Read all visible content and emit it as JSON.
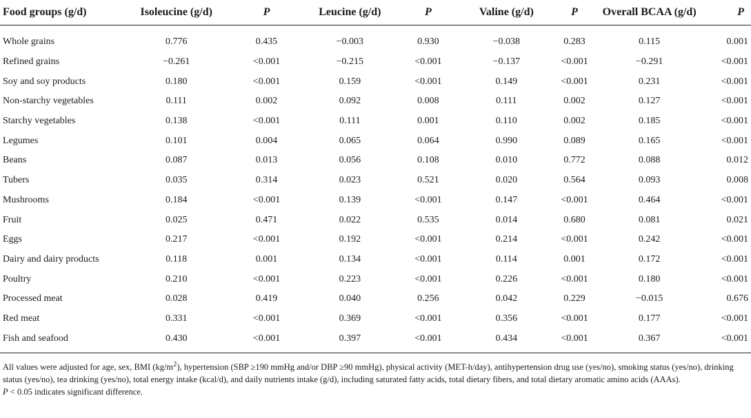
{
  "header": {
    "food": "Food groups (g/d)",
    "iso": "Isoleucine (g/d)",
    "p1": "P",
    "leu": "Leucine (g/d)",
    "p2": "P",
    "val": "Valine (g/d)",
    "p3": "P",
    "bcaa": "Overall BCAA (g/d)",
    "p4": "P"
  },
  "rows": [
    {
      "food": "Whole grains",
      "iso": "0.776",
      "p1": "0.435",
      "leu": "−0.003",
      "p2": "0.930",
      "val": "−0.038",
      "p3": "0.283",
      "bcaa": "0.115",
      "p4": "0.001"
    },
    {
      "food": "Refined grains",
      "iso": "−0.261",
      "p1": "<0.001",
      "leu": "−0.215",
      "p2": "<0.001",
      "val": "−0.137",
      "p3": "<0.001",
      "bcaa": "−0.291",
      "p4": "<0.001"
    },
    {
      "food": "Soy and soy products",
      "iso": "0.180",
      "p1": "<0.001",
      "leu": "0.159",
      "p2": "<0.001",
      "val": "0.149",
      "p3": "<0.001",
      "bcaa": "0.231",
      "p4": "<0.001"
    },
    {
      "food": "Non-starchy vegetables",
      "iso": "0.111",
      "p1": "0.002",
      "leu": "0.092",
      "p2": "0.008",
      "val": "0.111",
      "p3": "0.002",
      "bcaa": "0.127",
      "p4": "<0.001"
    },
    {
      "food": "Starchy vegetables",
      "iso": "0.138",
      "p1": "<0.001",
      "leu": "0.111",
      "p2": "0.001",
      "val": "0.110",
      "p3": "0.002",
      "bcaa": "0.185",
      "p4": "<0.001"
    },
    {
      "food": "Legumes",
      "iso": "0.101",
      "p1": "0.004",
      "leu": "0.065",
      "p2": "0.064",
      "val": "0.990",
      "p3": "0.089",
      "bcaa": "0.165",
      "p4": "<0.001"
    },
    {
      "food": "Beans",
      "iso": "0.087",
      "p1": "0.013",
      "leu": "0.056",
      "p2": "0.108",
      "val": "0.010",
      "p3": "0.772",
      "bcaa": "0.088",
      "p4": "0.012"
    },
    {
      "food": "Tubers",
      "iso": "0.035",
      "p1": "0.314",
      "leu": "0.023",
      "p2": "0.521",
      "val": "0.020",
      "p3": "0.564",
      "bcaa": "0.093",
      "p4": "0.008"
    },
    {
      "food": "Mushrooms",
      "iso": "0.184",
      "p1": "<0.001",
      "leu": "0.139",
      "p2": "<0.001",
      "val": "0.147",
      "p3": "<0.001",
      "bcaa": "0.464",
      "p4": "<0.001"
    },
    {
      "food": "Fruit",
      "iso": "0.025",
      "p1": "0.471",
      "leu": "0.022",
      "p2": "0.535",
      "val": "0.014",
      "p3": "0.680",
      "bcaa": "0.081",
      "p4": "0.021"
    },
    {
      "food": "Eggs",
      "iso": "0.217",
      "p1": "<0.001",
      "leu": "0.192",
      "p2": "<0.001",
      "val": "0.214",
      "p3": "<0.001",
      "bcaa": "0.242",
      "p4": "<0.001"
    },
    {
      "food": "Dairy and dairy products",
      "iso": "0.118",
      "p1": "0.001",
      "leu": "0.134",
      "p2": "<0.001",
      "val": "0.114",
      "p3": "0.001",
      "bcaa": "0.172",
      "p4": "<0.001"
    },
    {
      "food": "Poultry",
      "iso": "0.210",
      "p1": "<0.001",
      "leu": "0.223",
      "p2": "<0.001",
      "val": "0.226",
      "p3": "<0.001",
      "bcaa": "0.180",
      "p4": "<0.001"
    },
    {
      "food": "Processed meat",
      "iso": "0.028",
      "p1": "0.419",
      "leu": "0.040",
      "p2": "0.256",
      "val": "0.042",
      "p3": "0.229",
      "bcaa": "−0.015",
      "p4": "0.676"
    },
    {
      "food": "Red meat",
      "iso": "0.331",
      "p1": "<0.001",
      "leu": "0.369",
      "p2": "<0.001",
      "val": "0.356",
      "p3": "<0.001",
      "bcaa": "0.177",
      "p4": "<0.001"
    },
    {
      "food": "Fish and seafood",
      "iso": "0.430",
      "p1": "<0.001",
      "leu": "0.397",
      "p2": "<0.001",
      "val": "0.434",
      "p3": "<0.001",
      "bcaa": "0.367",
      "p4": "<0.001"
    }
  ],
  "notes": {
    "adjusted_pre": "All values were adjusted for age, sex, BMI (kg/m",
    "adjusted_sup": "2",
    "adjusted_post": "), hypertension (SBP ≥190 mmHg and/or DBP ≥90 mmHg), physical activity (MET-h/day), antihypertension drug use (yes/no), smoking status (yes/no), drinking status (yes/no), tea drinking (yes/no), total energy intake (kcal/d), and daily nutrients intake (g/d), including saturated fatty acids, total dietary fibers, and total dietary aromatic amino acids (AAAs).",
    "p_symbol": "P",
    "significance": " < 0.05 indicates significant difference."
  }
}
